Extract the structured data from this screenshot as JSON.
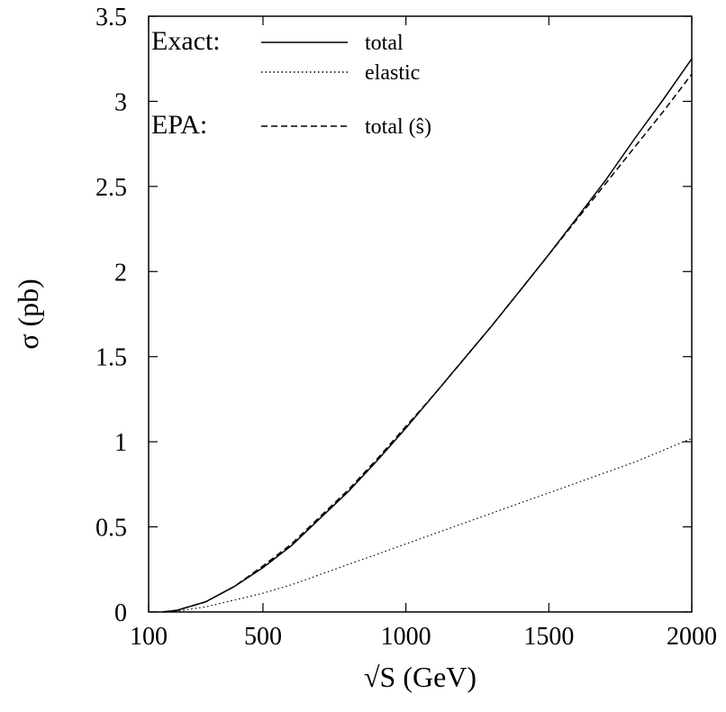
{
  "chart_data": {
    "type": "line",
    "xlabel": "√S (GeV)",
    "ylabel": "σ (pb)",
    "xlim": [
      100,
      2000
    ],
    "ylim": [
      0,
      3.5
    ],
    "x_ticks": [
      100,
      500,
      1000,
      1500,
      2000
    ],
    "x_tick_labels": [
      "100",
      "500",
      "1000",
      "1500",
      "2000"
    ],
    "y_ticks": [
      0,
      0.5,
      1,
      1.5,
      2,
      2.5,
      3,
      3.5
    ],
    "y_tick_labels": [
      "0",
      "0.5",
      "1",
      "1.5",
      "2",
      "2.5",
      "3",
      "3.5"
    ],
    "grid": false,
    "legend_placement": "top-left",
    "legend_groups": [
      {
        "title": "Exact:",
        "entries": [
          "total",
          "elastic"
        ]
      },
      {
        "title": "EPA:",
        "entries": [
          "total (ŝ)"
        ]
      }
    ],
    "x": [
      150,
      200,
      300,
      400,
      500,
      600,
      700,
      800,
      900,
      1000,
      1100,
      1200,
      1300,
      1400,
      1500,
      1600,
      1700,
      1800,
      1900,
      2000
    ],
    "series": [
      {
        "name": "total",
        "group": "Exact:",
        "style": "solid",
        "color": "#000000",
        "values": [
          0.0,
          0.01,
          0.06,
          0.15,
          0.26,
          0.39,
          0.55,
          0.71,
          0.89,
          1.08,
          1.28,
          1.48,
          1.68,
          1.89,
          2.1,
          2.32,
          2.54,
          2.78,
          3.01,
          3.25
        ]
      },
      {
        "name": "elastic",
        "group": "Exact:",
        "style": "dotted",
        "color": "#000000",
        "values": [
          0.0,
          0.005,
          0.03,
          0.07,
          0.11,
          0.16,
          0.22,
          0.28,
          0.34,
          0.4,
          0.46,
          0.52,
          0.58,
          0.64,
          0.7,
          0.76,
          0.82,
          0.88,
          0.95,
          1.02
        ]
      },
      {
        "name": "total (ŝ)",
        "group": "EPA:",
        "style": "dashed",
        "color": "#000000",
        "values": [
          0.0,
          0.01,
          0.06,
          0.15,
          0.27,
          0.4,
          0.56,
          0.72,
          0.9,
          1.09,
          1.28,
          1.48,
          1.68,
          1.89,
          2.1,
          2.31,
          2.52,
          2.73,
          2.94,
          3.16
        ]
      }
    ]
  }
}
